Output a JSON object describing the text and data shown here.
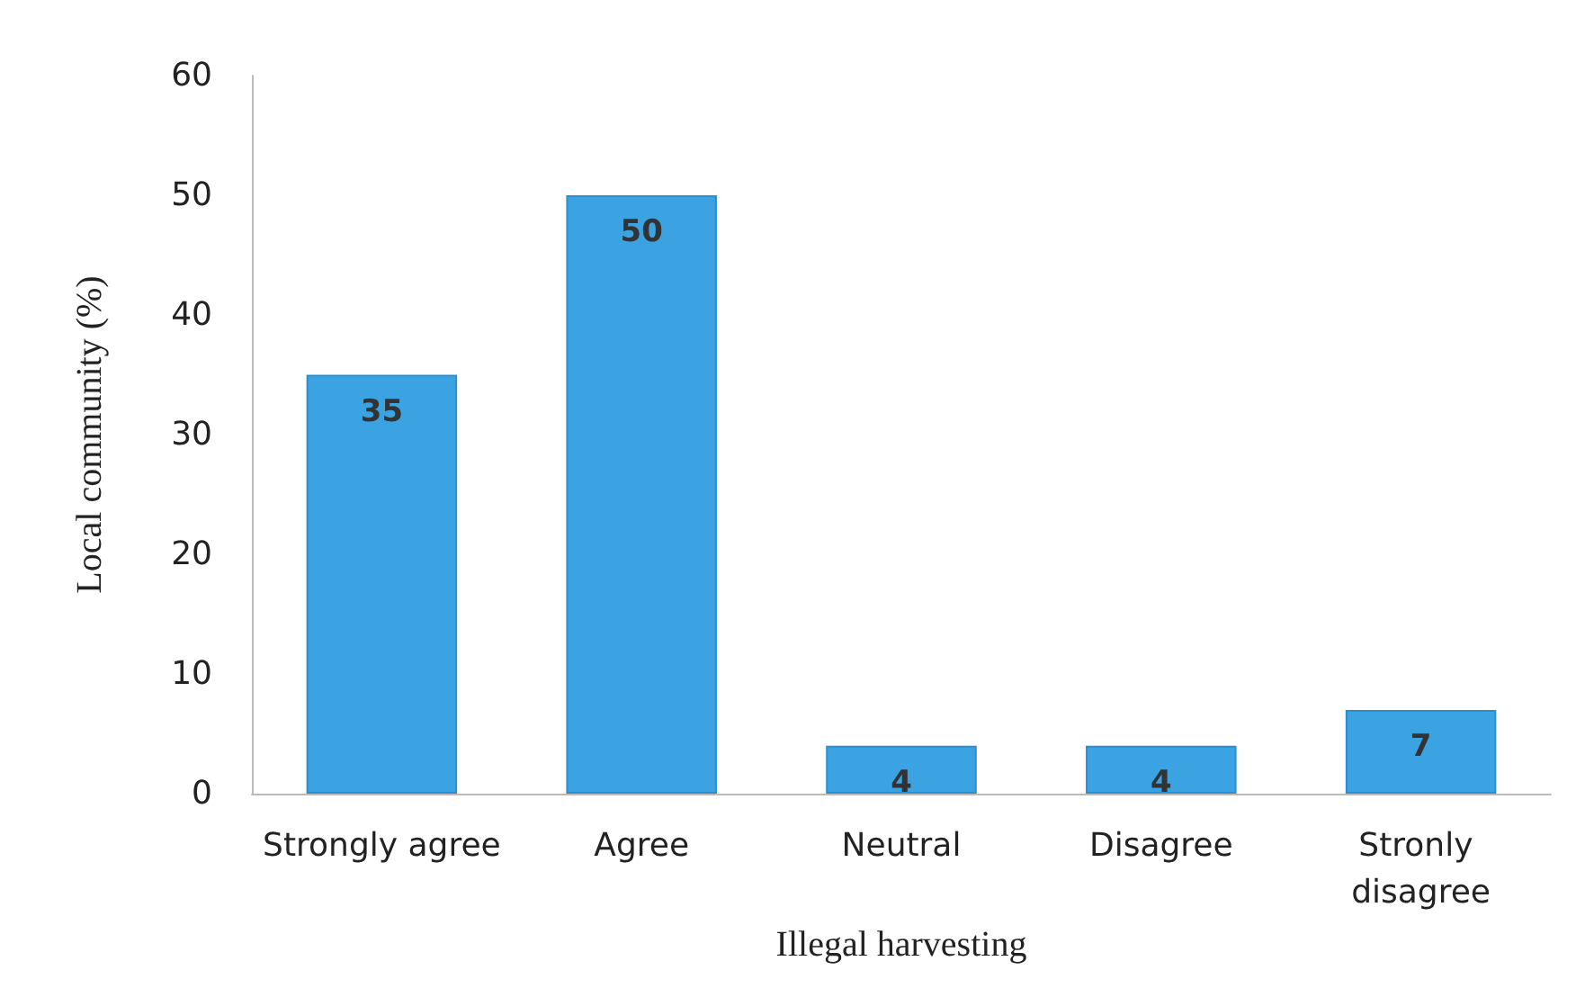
{
  "chart_data": {
    "type": "bar",
    "xlabel": "Illegal harvesting",
    "ylabel": "Local community (%)",
    "categories": [
      "Strongly agree",
      "Agree",
      "Neutral",
      "Disagree",
      "Stronly disagree"
    ],
    "values": [
      35,
      50,
      4,
      4,
      7
    ],
    "color": "#3ca3e2",
    "ylim": [
      0,
      60
    ],
    "yticks": [
      0,
      10,
      20,
      30,
      40,
      50,
      60
    ],
    "grid": false,
    "data_labels": true
  }
}
